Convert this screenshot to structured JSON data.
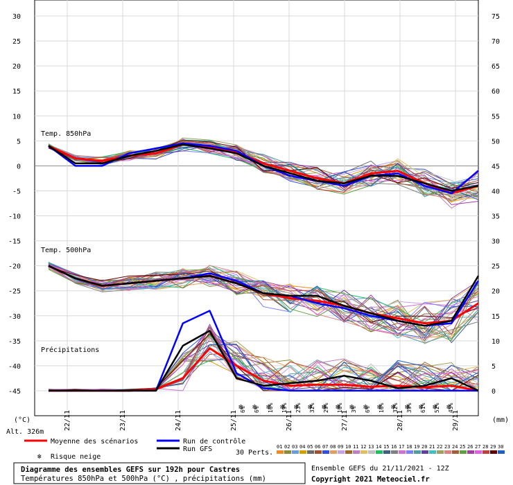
{
  "chart_data": {
    "type": "line",
    "title": "Diagramme des ensembles GEFS sur 192h pour Castres",
    "subtitle": "Températures 850hPa et 500hPa (°C) , précipitations (mm)",
    "run_info": "Ensemble GEFS du 21/11/2021 - 12Z",
    "copyright": "Copyright 2021 Meteociel.fr",
    "left_axis": {
      "unit": "(°C)",
      "ticks": [
        30,
        25,
        20,
        15,
        10,
        5,
        0,
        -5,
        -10,
        -15,
        -20,
        -25,
        -30,
        -35,
        -40,
        -45
      ],
      "range": [
        -50,
        30
      ]
    },
    "right_axis": {
      "unit": "(mm)",
      "ticks": [
        75,
        70,
        65,
        60,
        55,
        50,
        45,
        40,
        35,
        30,
        25,
        20,
        15,
        10,
        5,
        0
      ]
    },
    "x_labels": [
      "22/11",
      "23/11",
      "24/11",
      "25/11",
      "26/11",
      "27/11",
      "28/11",
      "29/11"
    ],
    "altitude": "Alt. 326m",
    "section_labels": {
      "t850": "Temp. 850hPa",
      "t500": "Temp. 500hPa",
      "precip": "Précipitations"
    },
    "legend": {
      "mean": "Moyenne des scénarios",
      "control": "Run de contrôle",
      "gfs": "Run GFS",
      "snow": "Risque neige",
      "perts": "30 Perts."
    },
    "snow_risk": [
      "6%",
      "6%",
      "16%",
      "19%",
      "23%",
      "32%",
      "29%",
      "10%",
      "3%",
      "6%",
      "16%",
      "32%",
      "39%",
      "61%",
      "52%",
      "45%"
    ],
    "member_numbers": [
      "01",
      "02",
      "03",
      "04",
      "05",
      "06",
      "07",
      "08",
      "09",
      "10",
      "11",
      "12",
      "13",
      "14",
      "15",
      "16",
      "17",
      "18",
      "19",
      "20",
      "21",
      "22",
      "23",
      "24",
      "25",
      "26",
      "27",
      "28",
      "29",
      "30"
    ],
    "member_colors": [
      "#f08a24",
      "#8c8c3c",
      "#66a0d8",
      "#d4a000",
      "#6c6c6c",
      "#a0522d",
      "#3050e0",
      "#e0a060",
      "#c8a0e8",
      "#9c6c2c",
      "#c080c0",
      "#e0c060",
      "#c0c0c0",
      "#20c060",
      "#406080",
      "#808080",
      "#d070d0",
      "#8080ff",
      "#50a0a0",
      "#6040a0",
      "#40c0c0",
      "#a0a060",
      "#e08080",
      "#a06040",
      "#60a040",
      "#a040a0",
      "#e060e0",
      "#c04040",
      "#600000",
      "#2060c0"
    ],
    "series": [
      {
        "name": "Moyenne T850",
        "color": "#ff0000",
        "values": [
          4,
          1.5,
          1,
          2,
          2.5,
          4.3,
          3.8,
          2.8,
          0.5,
          -1,
          -2.5,
          -3.5,
          -1.5,
          -1,
          -3.5,
          -5.5,
          -4
        ]
      },
      {
        "name": "Contrôle T850",
        "color": "#0000ff",
        "values": [
          4,
          0,
          0,
          2.5,
          3.5,
          4.5,
          4,
          3,
          0,
          -2,
          -3,
          -4,
          -2,
          -1.5,
          -4,
          -5.5,
          -1
        ]
      },
      {
        "name": "GFS T850",
        "color": "#000000",
        "values": [
          4,
          0.5,
          0.5,
          2,
          3,
          4.3,
          3.5,
          2.5,
          0,
          -1.5,
          -3,
          -3.5,
          -2,
          -2,
          -3.5,
          -5,
          -4
        ]
      },
      {
        "name": "Moyenne T500",
        "color": "#ff0000",
        "values": [
          -20,
          -22.5,
          -24,
          -23.5,
          -23,
          -22.5,
          -22,
          -23.5,
          -25.5,
          -26.5,
          -27,
          -28,
          -29.5,
          -30.5,
          -31.5,
          -31,
          -27.5
        ]
      },
      {
        "name": "Contrôle T500",
        "color": "#0000ff",
        "values": [
          -20,
          -22.5,
          -24,
          -23.5,
          -23,
          -22.5,
          -21.5,
          -23,
          -25.5,
          -26,
          -27.5,
          -28.5,
          -30,
          -31,
          -32,
          -31.5,
          -23
        ]
      },
      {
        "name": "GFS T500",
        "color": "#000000",
        "values": [
          -20,
          -22.5,
          -24,
          -23.5,
          -23,
          -22.5,
          -22,
          -23.5,
          -25.5,
          -26,
          -26,
          -28,
          -29.5,
          -31,
          -32,
          -31,
          -22
        ]
      },
      {
        "name": "Moyenne précipitations",
        "color": "#ff0000",
        "values": [
          0,
          0,
          0,
          0,
          0.3,
          2.5,
          8.5,
          5,
          2,
          1,
          1.2,
          1.2,
          0.8,
          1,
          0.7,
          1,
          0
        ]
      },
      {
        "name": "Contrôle précipitations",
        "color": "#0000ff",
        "values": [
          0,
          0,
          0,
          0,
          0,
          13.5,
          16,
          3.5,
          0.5,
          0,
          0,
          0,
          0,
          0,
          0,
          0,
          0
        ]
      },
      {
        "name": "GFS précipitations",
        "color": "#000000",
        "values": [
          0,
          0,
          0,
          0,
          0,
          9,
          12,
          2.5,
          1,
          1.5,
          2,
          3,
          2,
          0.5,
          1,
          2.5,
          0
        ]
      }
    ]
  }
}
